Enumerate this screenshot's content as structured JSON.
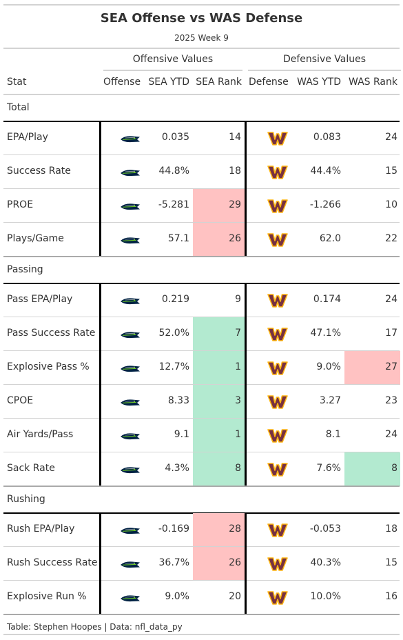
{
  "title": "SEA Offense vs WAS Defense",
  "subtitle": "2025 Week 9",
  "spanners": {
    "offense": "Offensive Values",
    "defense": "Defensive Values"
  },
  "columns": [
    "Stat",
    "Offense",
    "SEA YTD",
    "SEA Rank",
    "Defense",
    "WAS YTD",
    "WAS Rank"
  ],
  "colors": {
    "bad": "#ffc2c2",
    "good": "#b3ead0",
    "seahawks_navy": "#002244",
    "seahawks_green": "#69be28",
    "commanders_burgundy": "#773141",
    "commanders_gold": "#ffb612"
  },
  "icons": {
    "offense": "seahawks-logo-icon",
    "defense": "commanders-w-logo-icon"
  },
  "source": "Table: Stephen Hoopes | Data: nfl_data_py",
  "chart_data": {
    "type": "table",
    "groups": [
      {
        "name": "Total",
        "rows": [
          {
            "stat": "EPA/Play",
            "off": "0.035",
            "off_rank": "14",
            "off_color": "",
            "def": "0.083",
            "def_rank": "24",
            "def_color": ""
          },
          {
            "stat": "Success Rate",
            "off": "44.8%",
            "off_rank": "18",
            "off_color": "",
            "def": "44.4%",
            "def_rank": "15",
            "def_color": ""
          },
          {
            "stat": "PROE",
            "off": "-5.281",
            "off_rank": "29",
            "off_color": "bad",
            "def": "-1.266",
            "def_rank": "10",
            "def_color": ""
          },
          {
            "stat": "Plays/Game",
            "off": "57.1",
            "off_rank": "26",
            "off_color": "bad",
            "def": "62.0",
            "def_rank": "22",
            "def_color": ""
          }
        ]
      },
      {
        "name": "Passing",
        "rows": [
          {
            "stat": "Pass EPA/Play",
            "off": "0.219",
            "off_rank": "9",
            "off_color": "",
            "def": "0.174",
            "def_rank": "24",
            "def_color": ""
          },
          {
            "stat": "Pass Success Rate",
            "off": "52.0%",
            "off_rank": "7",
            "off_color": "good",
            "def": "47.1%",
            "def_rank": "17",
            "def_color": ""
          },
          {
            "stat": "Explosive Pass %",
            "off": "12.7%",
            "off_rank": "1",
            "off_color": "good",
            "def": "9.0%",
            "def_rank": "27",
            "def_color": "bad"
          },
          {
            "stat": "CPOE",
            "off": "8.33",
            "off_rank": "3",
            "off_color": "good",
            "def": "3.27",
            "def_rank": "23",
            "def_color": ""
          },
          {
            "stat": "Air Yards/Pass",
            "off": "9.1",
            "off_rank": "1",
            "off_color": "good",
            "def": "8.1",
            "def_rank": "24",
            "def_color": ""
          },
          {
            "stat": "Sack Rate",
            "off": "4.3%",
            "off_rank": "8",
            "off_color": "good",
            "def": "7.6%",
            "def_rank": "8",
            "def_color": "good"
          }
        ]
      },
      {
        "name": "Rushing",
        "rows": [
          {
            "stat": "Rush EPA/Play",
            "off": "-0.169",
            "off_rank": "28",
            "off_color": "bad",
            "def": "-0.053",
            "def_rank": "18",
            "def_color": ""
          },
          {
            "stat": "Rush Success Rate",
            "off": "36.7%",
            "off_rank": "26",
            "off_color": "bad",
            "def": "40.3%",
            "def_rank": "15",
            "def_color": ""
          },
          {
            "stat": "Explosive Run %",
            "off": "9.0%",
            "off_rank": "20",
            "off_color": "",
            "def": "10.0%",
            "def_rank": "16",
            "def_color": ""
          }
        ]
      }
    ]
  }
}
